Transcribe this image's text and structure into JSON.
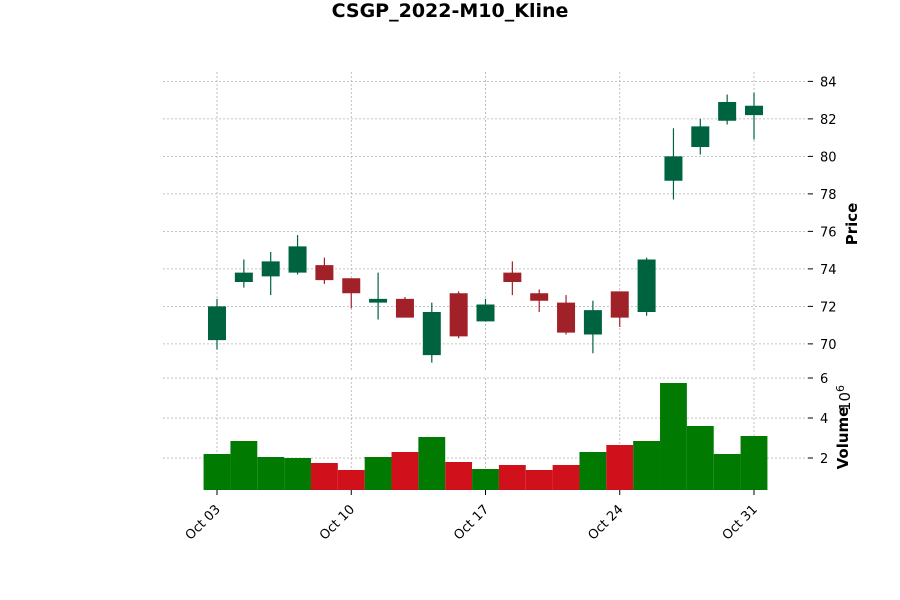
{
  "chart_data": {
    "type": "candlestick",
    "title": "CSGP_2022-M10_Kline",
    "price_label": "Price",
    "volume_label": "Volume",
    "volume_multiplier_base": "10",
    "volume_multiplier_exp": "6",
    "colors": {
      "up": "#006340",
      "down": "#a02128",
      "volume_up": "#007a00",
      "volume_down": "#d0101a"
    },
    "price_ylim": [
      68.5,
      84.5
    ],
    "price_ticks": [
      70,
      72,
      74,
      76,
      78,
      80,
      82,
      84
    ],
    "volume_ylim": [
      0.4,
      6.0
    ],
    "volume_ticks": [
      2,
      4,
      6
    ],
    "x_tick_labels": [
      {
        "label": "Oct 03",
        "index": 0
      },
      {
        "label": "Oct 10",
        "index": 5
      },
      {
        "label": "Oct 17",
        "index": 10
      },
      {
        "label": "Oct 24",
        "index": 15
      },
      {
        "label": "Oct 31",
        "index": 20
      }
    ],
    "candles": [
      {
        "date": "2022-10-03",
        "open": 70.2,
        "high": 72.4,
        "low": 69.7,
        "close": 72.0,
        "volume": 2.2
      },
      {
        "date": "2022-10-04",
        "open": 73.3,
        "high": 74.5,
        "low": 73.0,
        "close": 73.8,
        "volume": 2.85
      },
      {
        "date": "2022-10-05",
        "open": 73.6,
        "high": 74.9,
        "low": 72.6,
        "close": 74.4,
        "volume": 2.05
      },
      {
        "date": "2022-10-06",
        "open": 73.8,
        "high": 75.8,
        "low": 73.7,
        "close": 75.2,
        "volume": 2.0
      },
      {
        "date": "2022-10-07",
        "open": 74.2,
        "high": 74.6,
        "low": 73.2,
        "close": 73.4,
        "volume": 1.75
      },
      {
        "date": "2022-10-10",
        "open": 73.5,
        "high": 73.5,
        "low": 71.9,
        "close": 72.7,
        "volume": 1.4
      },
      {
        "date": "2022-10-11",
        "open": 72.2,
        "high": 73.8,
        "low": 71.3,
        "close": 72.4,
        "volume": 2.05
      },
      {
        "date": "2022-10-12",
        "open": 72.4,
        "high": 72.5,
        "low": 71.4,
        "close": 71.4,
        "volume": 2.3
      },
      {
        "date": "2022-10-13",
        "open": 69.4,
        "high": 72.2,
        "low": 69.0,
        "close": 71.7,
        "volume": 3.05
      },
      {
        "date": "2022-10-14",
        "open": 72.7,
        "high": 72.8,
        "low": 70.3,
        "close": 70.4,
        "volume": 1.8
      },
      {
        "date": "2022-10-17",
        "open": 71.2,
        "high": 72.4,
        "low": 71.2,
        "close": 72.1,
        "volume": 1.45
      },
      {
        "date": "2022-10-18",
        "open": 73.8,
        "high": 74.4,
        "low": 72.6,
        "close": 73.3,
        "volume": 1.65
      },
      {
        "date": "2022-10-19",
        "open": 72.7,
        "high": 72.9,
        "low": 71.7,
        "close": 72.3,
        "volume": 1.4
      },
      {
        "date": "2022-10-20",
        "open": 72.2,
        "high": 72.6,
        "low": 70.5,
        "close": 70.6,
        "volume": 1.65
      },
      {
        "date": "2022-10-21",
        "open": 70.5,
        "high": 72.3,
        "low": 69.5,
        "close": 71.8,
        "volume": 2.3
      },
      {
        "date": "2022-10-24",
        "open": 72.8,
        "high": 72.8,
        "low": 70.9,
        "close": 71.4,
        "volume": 2.65
      },
      {
        "date": "2022-10-25",
        "open": 71.7,
        "high": 74.6,
        "low": 71.5,
        "close": 74.5,
        "volume": 2.85
      },
      {
        "date": "2022-10-26",
        "open": 78.7,
        "high": 81.5,
        "low": 77.7,
        "close": 80.0,
        "volume": 5.75
      },
      {
        "date": "2022-10-27",
        "open": 80.5,
        "high": 82.0,
        "low": 80.1,
        "close": 81.6,
        "volume": 3.6
      },
      {
        "date": "2022-10-28",
        "open": 81.9,
        "high": 83.3,
        "low": 81.7,
        "close": 82.9,
        "volume": 2.2
      },
      {
        "date": "2022-10-31",
        "open": 82.2,
        "high": 83.4,
        "low": 80.9,
        "close": 82.7,
        "volume": 3.1
      }
    ]
  }
}
